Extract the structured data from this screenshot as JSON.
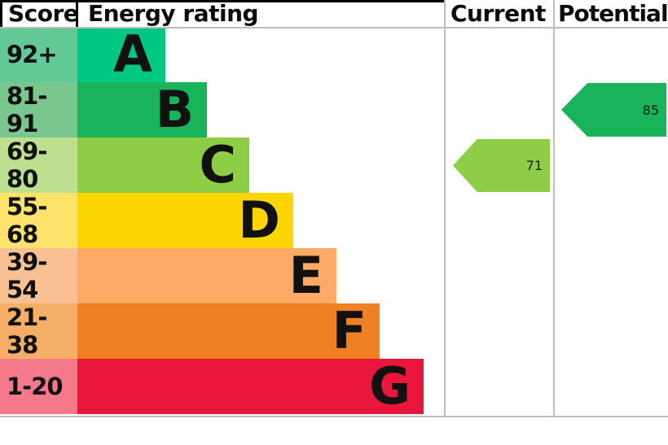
{
  "header": {
    "score": "Score",
    "energy_rating": "Energy rating",
    "current": "Current",
    "potential": "Potential"
  },
  "chart_data": {
    "type": "bar",
    "title": "Energy rating",
    "categories": [
      "A",
      "B",
      "C",
      "D",
      "E",
      "F",
      "G"
    ],
    "bands": [
      {
        "letter": "A",
        "range": "92+",
        "color": "#00c781",
        "tint": "#63c997"
      },
      {
        "letter": "B",
        "range": "81-91",
        "color": "#19b459",
        "tint": "#79c78e"
      },
      {
        "letter": "C",
        "range": "69-80",
        "color": "#8dce46",
        "tint": "#bce090"
      },
      {
        "letter": "D",
        "range": "55-68",
        "color": "#fdd500",
        "tint": "#fde36b"
      },
      {
        "letter": "E",
        "range": "39-54",
        "color": "#fcaa65",
        "tint": "#f9c193"
      },
      {
        "letter": "F",
        "range": "21-38",
        "color": "#ef8023",
        "tint": "#f5ae66"
      },
      {
        "letter": "G",
        "range": "1-20",
        "color": "#e9153b",
        "tint": "#f3798b"
      }
    ],
    "markers": {
      "current": {
        "value": 71,
        "band": "C",
        "color": "#8dce46"
      },
      "potential": {
        "value": 85,
        "band": "B",
        "color": "#19b459"
      }
    },
    "legend_position": "none",
    "grid": "column dividers only"
  }
}
